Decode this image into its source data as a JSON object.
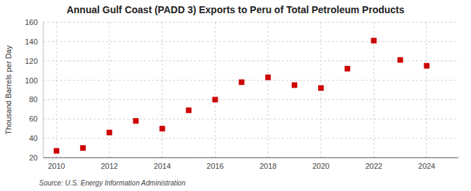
{
  "chart_data": {
    "type": "scatter",
    "title": "Annual Gulf Coast (PADD 3) Exports to Peru of Total Petroleum Products",
    "ylabel": "Thousand Barrels per Day",
    "source": "Source: U.S. Energy Information Administration",
    "x": [
      2010,
      2011,
      2012,
      2013,
      2014,
      2015,
      2016,
      2017,
      2018,
      2019,
      2020,
      2021,
      2022,
      2023,
      2024
    ],
    "values": [
      27,
      30,
      46,
      58,
      50,
      69,
      80,
      98,
      103,
      95,
      92,
      112,
      141,
      121,
      115
    ],
    "color": "#cc0000",
    "marker": "square",
    "xlim": [
      2009.5,
      2025.2
    ],
    "xticks": [
      2010,
      2012,
      2014,
      2016,
      2018,
      2020,
      2022,
      2024
    ],
    "ylim": [
      20,
      160
    ],
    "yticks": [
      20,
      40,
      60,
      80,
      100,
      120,
      140,
      160
    ],
    "grid": true
  }
}
